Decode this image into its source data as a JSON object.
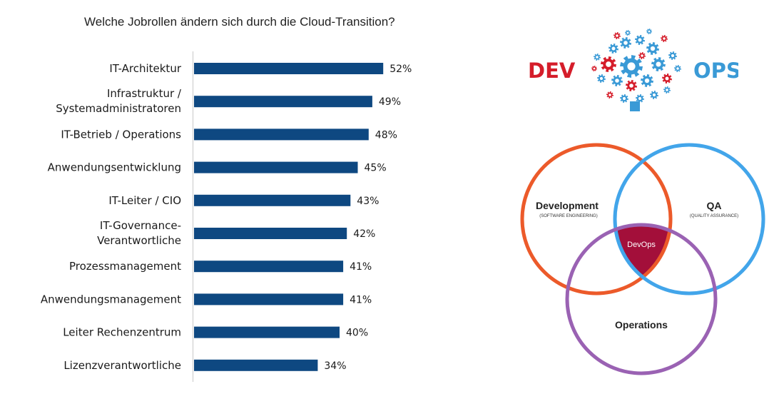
{
  "chart_data": {
    "type": "bar",
    "orientation": "horizontal",
    "title": "Welche Jobrollen ändern sich durch die Cloud-Transition?",
    "categories": [
      [
        "IT-Architektur"
      ],
      [
        "Infrastruktur /",
        "Systemadministratoren"
      ],
      [
        "IT-Betrieb / Operations"
      ],
      [
        "Anwendungsentwicklung"
      ],
      [
        "IT-Leiter / CIO"
      ],
      [
        "IT-Governance-",
        "Verantwortliche"
      ],
      [
        "Prozessmanagement"
      ],
      [
        "Anwendungsmanagement"
      ],
      [
        "Leiter Rechenzentrum"
      ],
      [
        "Lizenzverantwortliche"
      ]
    ],
    "values": [
      52,
      49,
      48,
      45,
      43,
      42,
      41,
      41,
      40,
      34
    ],
    "value_labels": [
      "52%",
      "49%",
      "48%",
      "45%",
      "43%",
      "42%",
      "41%",
      "41%",
      "40%",
      "34%"
    ],
    "xlim": [
      0,
      100
    ],
    "grid": false,
    "bar_color": "#0e4881"
  },
  "logo": {
    "left_word": "DEV",
    "right_word": "OPS",
    "left_color": "#d51d2a",
    "right_color": "#3a9ad6"
  },
  "venn": {
    "development": {
      "title": "Development",
      "subtitle": "(SOFTWARE ENGINEERING)",
      "color": "#ec5a2a"
    },
    "qa": {
      "title": "QA",
      "subtitle": "(QUALITY ASSURANCE)",
      "color": "#42a5ea"
    },
    "operations": {
      "title": "Operations",
      "color": "#9a62b3"
    },
    "center": {
      "label": "DevOps",
      "color": "#a30f3a"
    }
  }
}
